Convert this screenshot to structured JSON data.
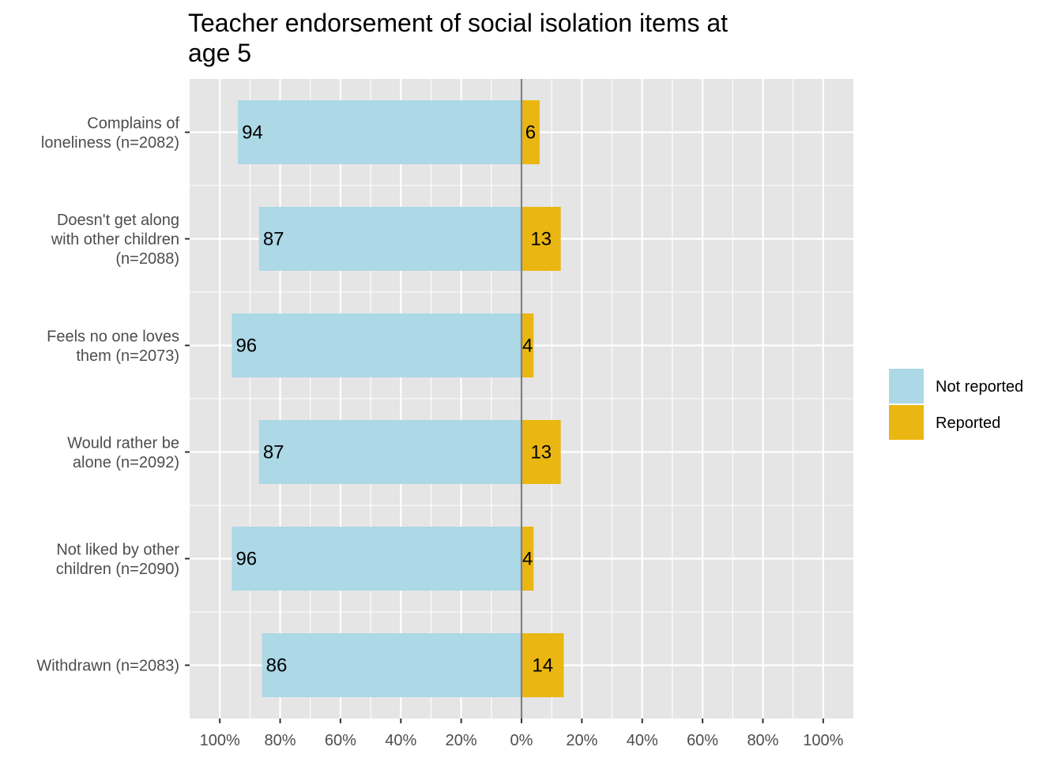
{
  "chart_data": {
    "type": "bar",
    "orientation": "horizontal-diverging",
    "title": "Teacher endorsement of social isolation items at age 5",
    "title_lines": [
      "Teacher endorsement of social isolation items at",
      "age 5"
    ],
    "xlabel": "",
    "ylabel": "",
    "xlim": [
      -110,
      110
    ],
    "x_tick_values": [
      -100,
      -80,
      -60,
      -40,
      -20,
      0,
      20,
      40,
      60,
      80,
      100
    ],
    "x_tick_labels": [
      "100%",
      "80%",
      "60%",
      "40%",
      "20%",
      "0%",
      "20%",
      "40%",
      "60%",
      "80%",
      "100%"
    ],
    "grid": true,
    "legend_position": "right",
    "categories": [
      [
        "Complains of",
        "loneliness (n=2082)"
      ],
      [
        "Doesn't get along",
        "with other children",
        "(n=2088)"
      ],
      [
        "Feels no one loves",
        "them (n=2073)"
      ],
      [
        "Would rather be",
        "alone (n=2092)"
      ],
      [
        "Not liked by other",
        "children (n=2090)"
      ],
      [
        "Withdrawn (n=2083)"
      ]
    ],
    "series": [
      {
        "name": "Not reported",
        "color": "#add8e6",
        "direction": "left",
        "values": [
          94,
          87,
          96,
          87,
          96,
          86
        ],
        "labels": [
          "94",
          "87",
          "96",
          "87",
          "96",
          "86"
        ]
      },
      {
        "name": "Reported",
        "color": "#eab611",
        "direction": "right",
        "values": [
          6,
          13,
          4,
          13,
          4,
          14
        ],
        "labels": [
          "6",
          "13",
          "4",
          "13",
          "4",
          "14"
        ]
      }
    ],
    "zero_line_color": "#808080",
    "panel_background": "#e5e5e5"
  }
}
